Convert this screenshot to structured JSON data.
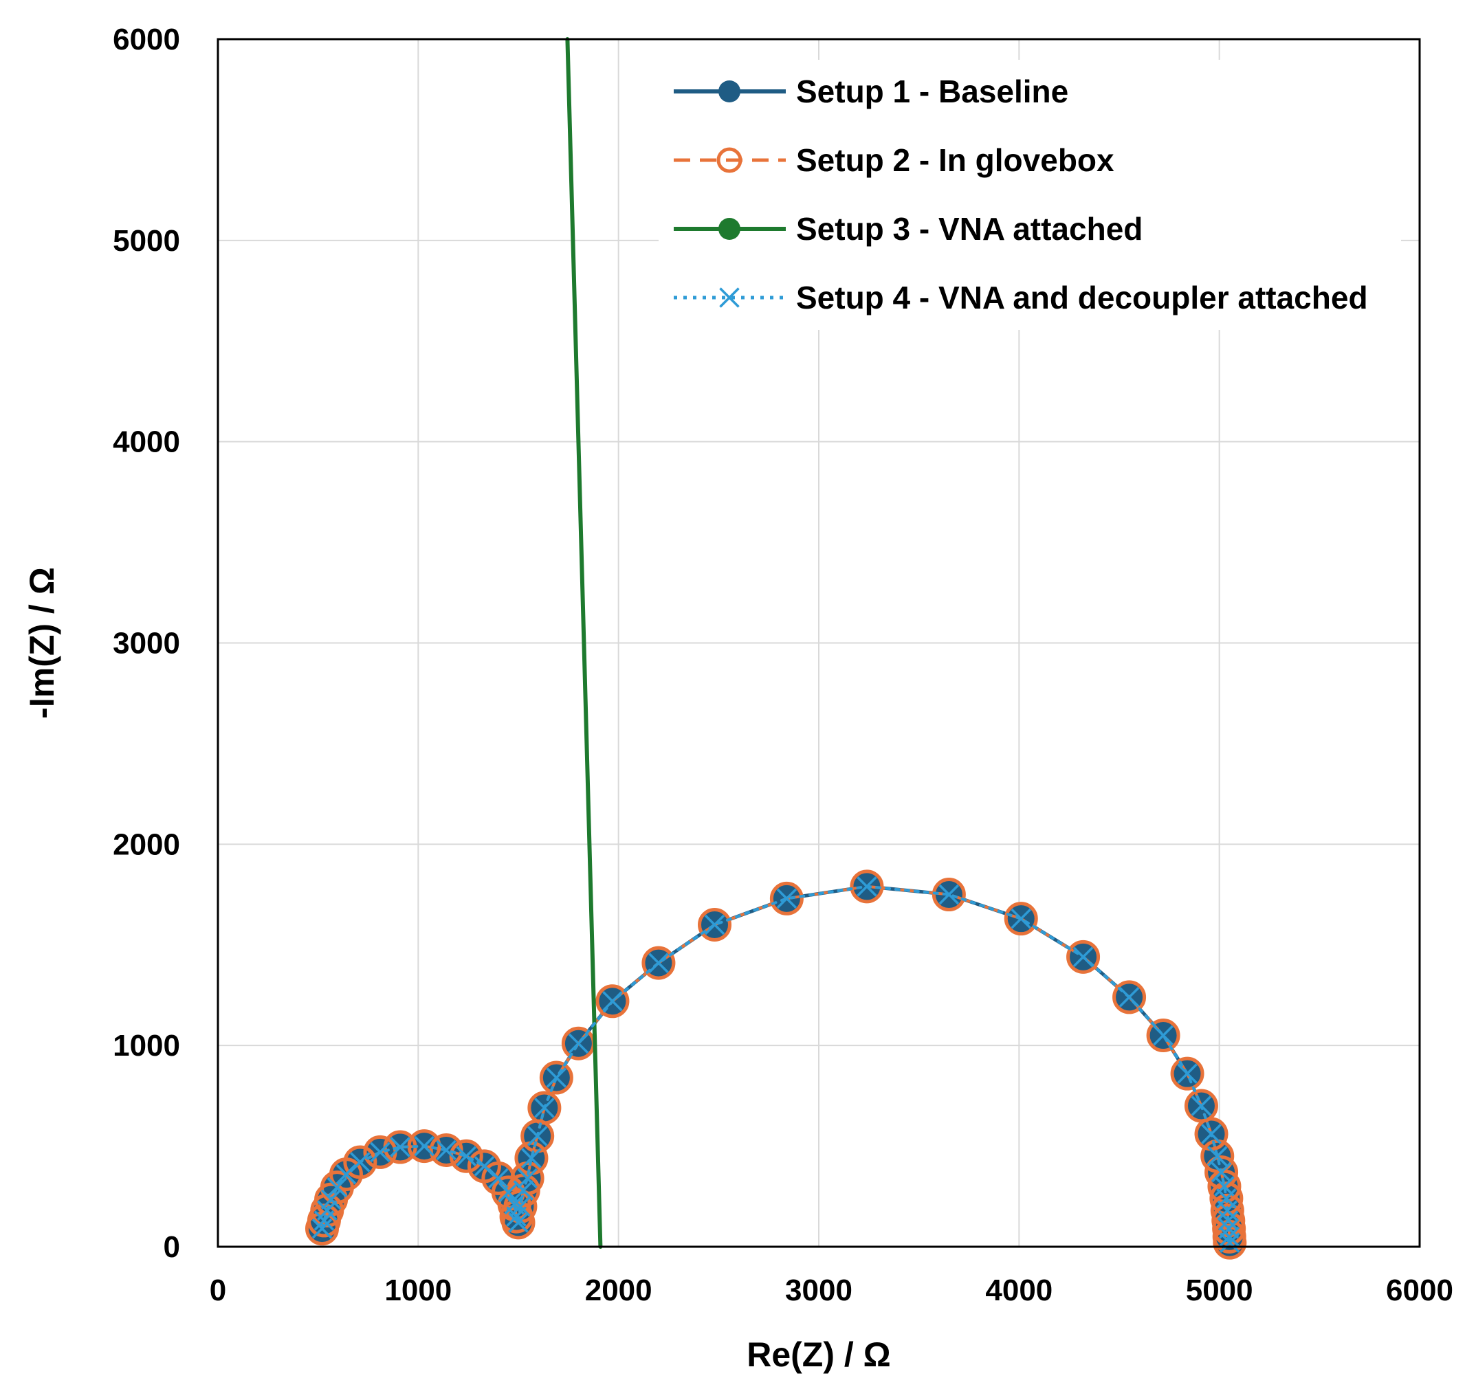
{
  "chart_data": {
    "type": "scatter",
    "title": "",
    "xlabel": "Re(Z) / Ω",
    "ylabel": "-Im(Z) / Ω",
    "xlim": [
      0,
      6000
    ],
    "ylim": [
      0,
      6000
    ],
    "xticks": [
      "0",
      "1000",
      "2000",
      "3000",
      "4000",
      "5000",
      "6000"
    ],
    "yticks": [
      "0",
      "1000",
      "2000",
      "3000",
      "4000",
      "5000",
      "6000"
    ],
    "grid": true,
    "legend_position": "top-right",
    "series": [
      {
        "name": "Setup 1 - Baseline",
        "color": "#1F5C84",
        "line": "solid",
        "marker": "filled-circle",
        "x": [
          520,
          530,
          545,
          565,
          595,
          640,
          710,
          810,
          910,
          1030,
          1140,
          1240,
          1330,
          1400,
          1450,
          1480,
          1490,
          1500,
          1510,
          1525,
          1545,
          1565,
          1595,
          1630,
          1690,
          1800,
          1970,
          2200,
          2480,
          2840,
          3240,
          3650,
          4010,
          4320,
          4550,
          4720,
          4840,
          4910,
          4960,
          4990,
          5010,
          5025,
          5035,
          5040,
          5045,
          5048,
          5050,
          5052
        ],
        "y": [
          90,
          130,
          180,
          235,
          295,
          360,
          420,
          470,
          495,
          500,
          480,
          450,
          400,
          340,
          270,
          210,
          150,
          120,
          200,
          280,
          340,
          440,
          550,
          690,
          840,
          1010,
          1220,
          1410,
          1600,
          1730,
          1790,
          1750,
          1630,
          1440,
          1240,
          1050,
          860,
          700,
          560,
          450,
          370,
          300,
          240,
          180,
          130,
          90,
          50,
          20
        ]
      },
      {
        "name": "Setup 2 - In glovebox",
        "color": "#E8733A",
        "line": "dashed",
        "marker": "open-circle",
        "x": [
          520,
          530,
          545,
          565,
          595,
          640,
          710,
          810,
          910,
          1030,
          1140,
          1240,
          1330,
          1400,
          1450,
          1480,
          1490,
          1500,
          1510,
          1525,
          1545,
          1565,
          1595,
          1630,
          1690,
          1800,
          1970,
          2200,
          2480,
          2840,
          3240,
          3650,
          4010,
          4320,
          4550,
          4720,
          4840,
          4910,
          4960,
          4990,
          5010,
          5025,
          5035,
          5040,
          5045,
          5048,
          5050,
          5052
        ],
        "y": [
          90,
          130,
          180,
          235,
          295,
          360,
          420,
          470,
          495,
          500,
          480,
          450,
          400,
          340,
          270,
          210,
          150,
          120,
          200,
          280,
          340,
          440,
          550,
          690,
          840,
          1010,
          1220,
          1410,
          1600,
          1730,
          1790,
          1750,
          1630,
          1440,
          1240,
          1050,
          860,
          700,
          560,
          450,
          370,
          300,
          240,
          180,
          130,
          90,
          50,
          20
        ]
      },
      {
        "name": "Setup 3 - VNA attached",
        "color": "#1E7A2E",
        "line": "solid",
        "marker": "filled-circle",
        "x": [
          1910,
          1745
        ],
        "y": [
          0,
          6000
        ]
      },
      {
        "name": "Setup 4 - VNA and decoupler attached",
        "color": "#2E9BD6",
        "line": "dotted",
        "marker": "x",
        "x": [
          520,
          530,
          545,
          565,
          595,
          640,
          710,
          810,
          910,
          1030,
          1140,
          1240,
          1330,
          1400,
          1450,
          1480,
          1490,
          1500,
          1510,
          1525,
          1545,
          1565,
          1595,
          1630,
          1690,
          1800,
          1970,
          2200,
          2480,
          2840,
          3240,
          3650,
          4010,
          4320,
          4550,
          4720,
          4840,
          4910,
          4960,
          4990,
          5010,
          5025,
          5035,
          5040,
          5045,
          5048,
          5050,
          5052
        ],
        "y": [
          90,
          130,
          180,
          235,
          295,
          360,
          420,
          470,
          495,
          500,
          480,
          450,
          400,
          340,
          270,
          210,
          150,
          120,
          200,
          280,
          340,
          440,
          550,
          690,
          840,
          1010,
          1220,
          1410,
          1600,
          1730,
          1790,
          1750,
          1630,
          1440,
          1240,
          1050,
          860,
          700,
          560,
          450,
          370,
          300,
          240,
          180,
          130,
          90,
          50,
          20
        ]
      }
    ]
  }
}
